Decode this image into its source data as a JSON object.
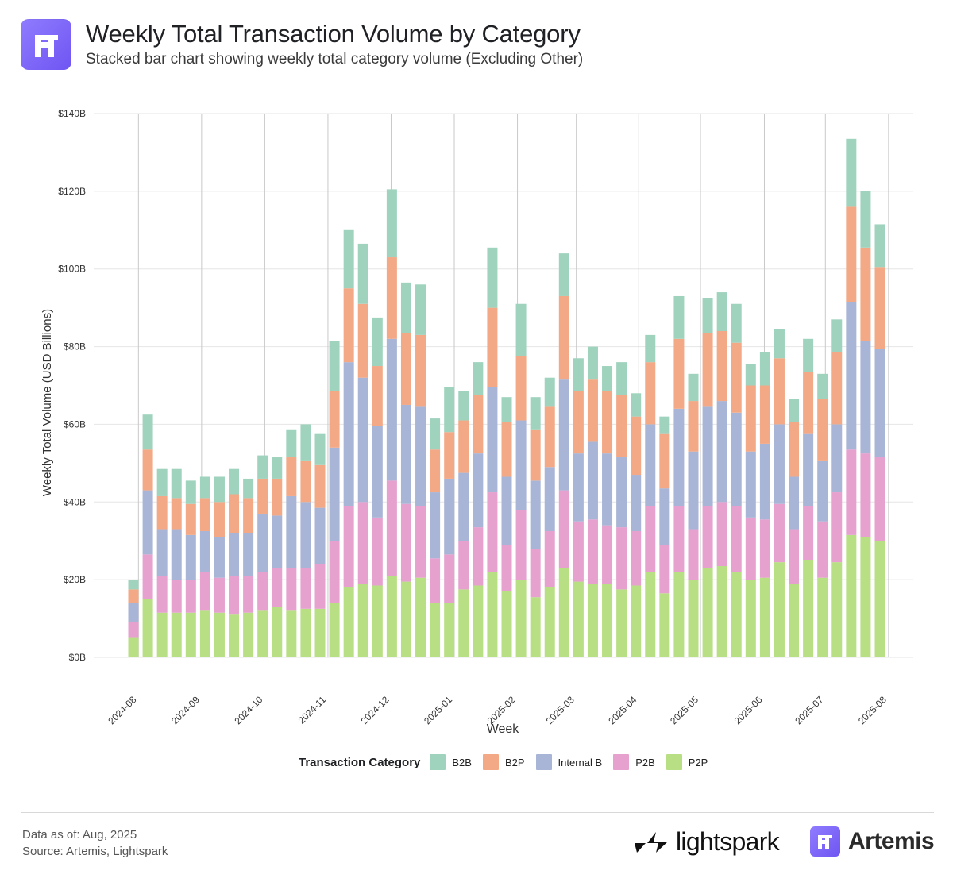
{
  "header": {
    "title": "Weekly Total Transaction Volume by Category",
    "subtitle": "Stacked bar chart showing weekly total category volume (Excluding Other)",
    "logo_icon": "artemis-logo-icon"
  },
  "legend": {
    "title": "Transaction Category",
    "items": [
      {
        "label": "B2B",
        "color": "#9fd3be"
      },
      {
        "label": "B2P",
        "color": "#f3a986"
      },
      {
        "label": "Internal B",
        "color": "#a9b5d6"
      },
      {
        "label": "P2B",
        "color": "#e6a1cf"
      },
      {
        "label": "P2P",
        "color": "#b9df84"
      }
    ]
  },
  "footer": {
    "data_as_of": "Data as of: Aug, 2025",
    "source": "Source: Artemis, Lightspark",
    "brands": {
      "lightspark": "lightspark",
      "artemis": "Artemis"
    }
  },
  "chart_data": {
    "type": "bar",
    "stacked": true,
    "title": "",
    "xlabel": "Week",
    "ylabel": "Weekly Total Volume (USD Billions)",
    "ylim": [
      0,
      140
    ],
    "yticks": [
      "$0B",
      "$20B",
      "$40B",
      "$60B",
      "$80B",
      "$100B",
      "$120B",
      "$140B"
    ],
    "xtick_labels": [
      "2024-08",
      "2024-09",
      "2024-10",
      "2024-11",
      "2024-12",
      "2025-01",
      "2025-02",
      "2025-03",
      "2025-04",
      "2025-05",
      "2025-06",
      "2025-07",
      "2025-08"
    ],
    "grid": true,
    "legend_position": "bottom",
    "series": [
      {
        "name": "P2P",
        "color": "#b9df84",
        "values": [
          5,
          15,
          11.5,
          11.5,
          11.5,
          12,
          11.5,
          11,
          11.5,
          12,
          13,
          12,
          12.5,
          12.5,
          14,
          18,
          19,
          18.5,
          21,
          19.5,
          20.5,
          14,
          14,
          17.5,
          18.5,
          22,
          17,
          20,
          15.5,
          18,
          23,
          19.5,
          19,
          19,
          17.5,
          18.5,
          22,
          16.5,
          22,
          20,
          23,
          23.5,
          22,
          20,
          20.5,
          24.5,
          19,
          25,
          20.5,
          24.5,
          31.5,
          31,
          30
        ]
      },
      {
        "name": "P2B",
        "color": "#e6a1cf",
        "values": [
          4,
          11.5,
          9.5,
          8.5,
          8.5,
          10,
          9,
          10,
          9.5,
          10,
          10,
          11,
          10.5,
          11.5,
          16,
          21,
          21,
          17.5,
          24.5,
          20,
          18.5,
          11.5,
          12.5,
          12.5,
          15,
          20.5,
          12,
          18,
          12.5,
          14.5,
          20,
          15.5,
          16.5,
          15,
          16,
          14,
          17,
          12.5,
          17,
          13,
          16,
          16.5,
          17,
          16,
          15,
          15,
          14,
          14,
          14.5,
          18,
          22,
          21.5,
          21.5
        ]
      },
      {
        "name": "Internal B",
        "color": "#a9b5d6",
        "values": [
          5,
          16.5,
          12,
          13,
          11.5,
          10.5,
          10.5,
          11,
          11,
          15,
          13.5,
          18.5,
          17,
          14.5,
          24,
          37,
          32,
          23.5,
          36.5,
          25.5,
          25.5,
          17,
          19.5,
          17.5,
          19,
          27,
          17.5,
          23,
          17.5,
          16.5,
          28.5,
          17.5,
          20,
          18.5,
          18,
          14.5,
          21,
          14.5,
          25,
          20,
          25.5,
          26,
          24,
          17,
          19.5,
          20.5,
          13.5,
          18.5,
          15.5,
          17.5,
          38,
          29,
          28
        ]
      },
      {
        "name": "B2P",
        "color": "#f3a986",
        "values": [
          3.5,
          10.5,
          8.5,
          8,
          8,
          8.5,
          9,
          10,
          9,
          9,
          9.5,
          10,
          10.5,
          11,
          14.5,
          19,
          19,
          15.5,
          21,
          18.5,
          18.5,
          11,
          12,
          13.5,
          15,
          20.5,
          14,
          16.5,
          13,
          15.5,
          21.5,
          16,
          16,
          16,
          16,
          15,
          16,
          14,
          18,
          13,
          19,
          18,
          18,
          17,
          15,
          17,
          14,
          16,
          16,
          18.5,
          24.5,
          24,
          21
        ]
      },
      {
        "name": "B2B",
        "color": "#9fd3be",
        "values": [
          2.5,
          9,
          7,
          7.5,
          6,
          5.5,
          6.5,
          6.5,
          5,
          6,
          5.5,
          7,
          9.5,
          8,
          13,
          15,
          15.5,
          12.5,
          17.5,
          13,
          13,
          8,
          11.5,
          7.5,
          8.5,
          15.5,
          6.5,
          13.5,
          8.5,
          7.5,
          11,
          8.5,
          8.5,
          6.5,
          8.5,
          6,
          7,
          4.5,
          11,
          7,
          9,
          10,
          10,
          5.5,
          8.5,
          7.5,
          6,
          8.5,
          6.5,
          8.5,
          17.5,
          14.5,
          11
        ]
      }
    ]
  }
}
